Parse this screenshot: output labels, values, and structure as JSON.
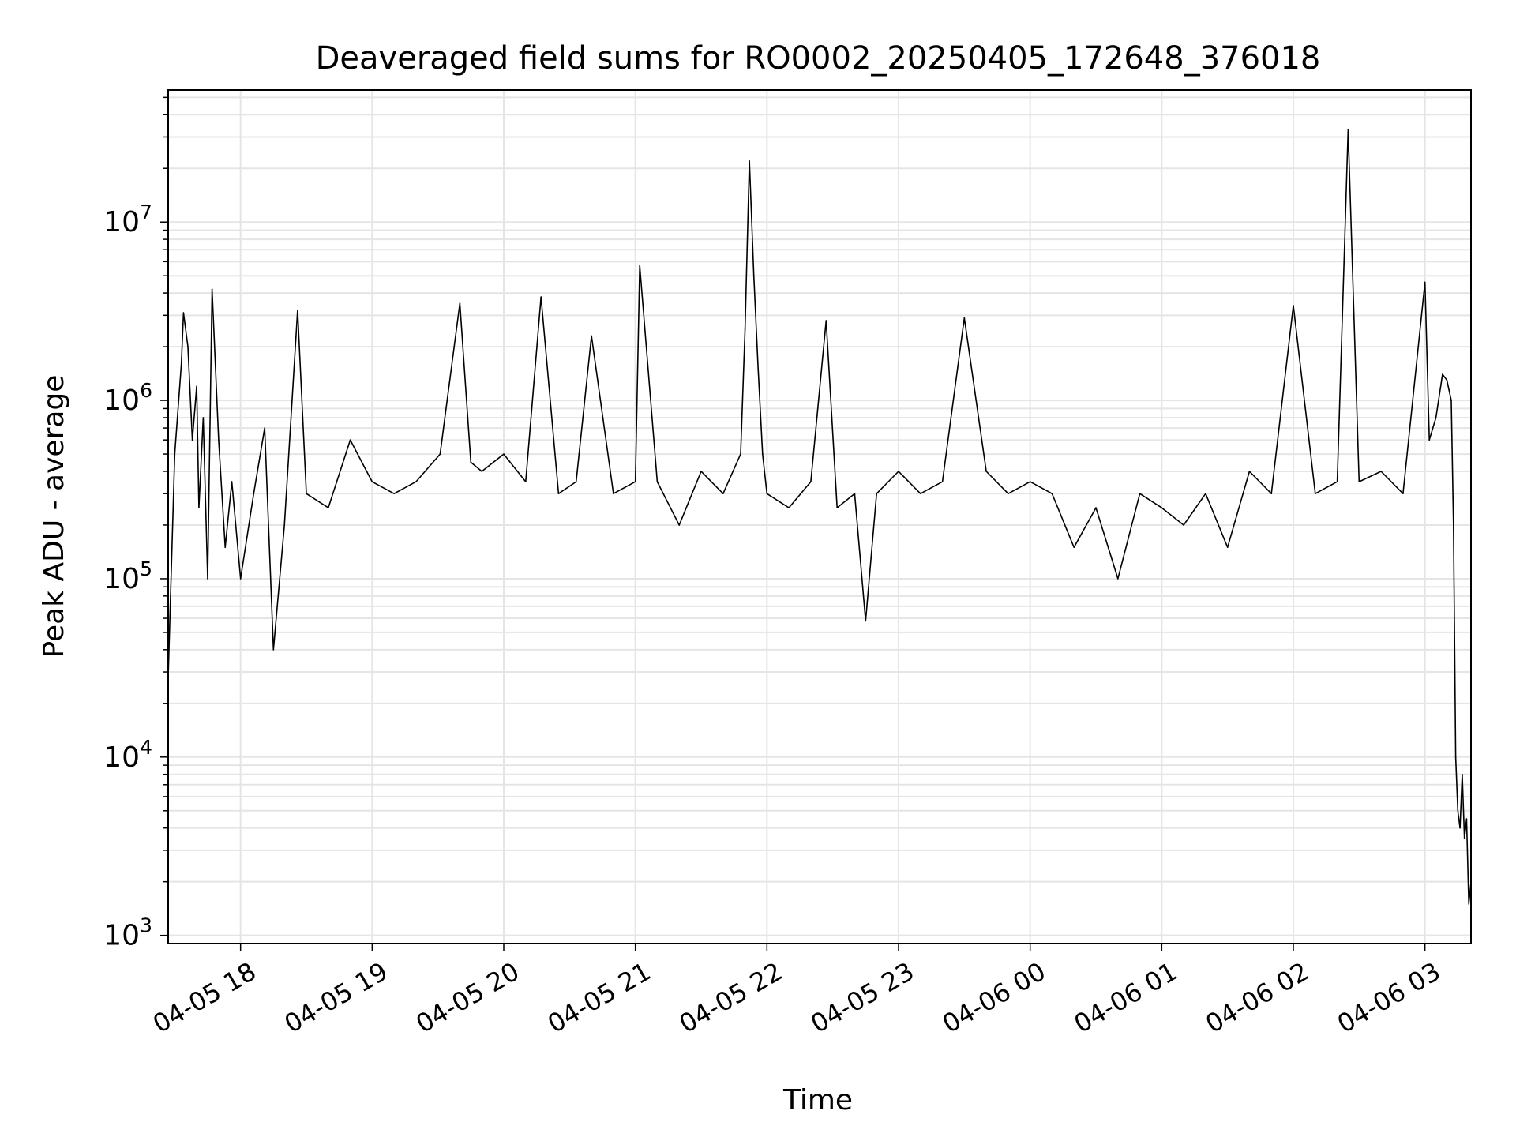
{
  "chart_data": {
    "type": "line",
    "title": "Deaveraged field sums for RO0002_20250405_172648_376018",
    "xlabel": "Time",
    "ylabel": "Peak ADU - average",
    "yscale": "log",
    "ylim": [
      900,
      55000000
    ],
    "xlim": [
      "2025-04-05 17:27",
      "2025-04-06 03:21"
    ],
    "grid": true,
    "line_color": "#000000",
    "grid_color": "#e5e5e5",
    "x_ticks": [
      {
        "time": "2025-04-05 18:00",
        "label": "04-05 18"
      },
      {
        "time": "2025-04-05 19:00",
        "label": "04-05 19"
      },
      {
        "time": "2025-04-05 20:00",
        "label": "04-05 20"
      },
      {
        "time": "2025-04-05 21:00",
        "label": "04-05 21"
      },
      {
        "time": "2025-04-05 22:00",
        "label": "04-05 22"
      },
      {
        "time": "2025-04-05 23:00",
        "label": "04-05 23"
      },
      {
        "time": "2025-04-06 00:00",
        "label": "04-06 00"
      },
      {
        "time": "2025-04-06 01:00",
        "label": "04-06 01"
      },
      {
        "time": "2025-04-06 02:00",
        "label": "04-06 02"
      },
      {
        "time": "2025-04-06 03:00",
        "label": "04-06 03"
      }
    ],
    "y_ticks": [
      {
        "value": 1000,
        "mantissa": "10",
        "exponent": "3"
      },
      {
        "value": 10000,
        "mantissa": "10",
        "exponent": "4"
      },
      {
        "value": 100000,
        "mantissa": "10",
        "exponent": "5"
      },
      {
        "value": 1000000,
        "mantissa": "10",
        "exponent": "6"
      },
      {
        "value": 10000000,
        "mantissa": "10",
        "exponent": "7"
      }
    ],
    "series": [
      {
        "x": [
          "2025-04-05 17:27",
          "2025-04-05 17:28",
          "2025-04-05 17:30",
          "2025-04-05 17:33",
          "2025-04-05 17:34",
          "2025-04-05 17:36",
          "2025-04-05 17:38",
          "2025-04-05 17:40",
          "2025-04-05 17:41",
          "2025-04-05 17:43",
          "2025-04-05 17:45",
          "2025-04-05 17:47",
          "2025-04-05 17:50",
          "2025-04-05 17:53",
          "2025-04-05 17:56",
          "2025-04-05 18:00",
          "2025-04-05 18:06",
          "2025-04-05 18:11",
          "2025-04-05 18:15",
          "2025-04-05 18:20",
          "2025-04-05 18:26",
          "2025-04-05 18:30",
          "2025-04-05 18:40",
          "2025-04-05 18:50",
          "2025-04-05 19:00",
          "2025-04-05 19:10",
          "2025-04-05 19:20",
          "2025-04-05 19:31",
          "2025-04-05 19:40",
          "2025-04-05 19:45",
          "2025-04-05 19:50",
          "2025-04-05 20:00",
          "2025-04-05 20:10",
          "2025-04-05 20:17",
          "2025-04-05 20:25",
          "2025-04-05 20:33",
          "2025-04-05 20:40",
          "2025-04-05 20:50",
          "2025-04-05 21:00",
          "2025-04-05 21:02",
          "2025-04-05 21:10",
          "2025-04-05 21:20",
          "2025-04-05 21:30",
          "2025-04-05 21:40",
          "2025-04-05 21:48",
          "2025-04-05 21:50",
          "2025-04-05 21:52",
          "2025-04-05 21:54",
          "2025-04-05 21:56",
          "2025-04-05 21:58",
          "2025-04-05 22:00",
          "2025-04-05 22:10",
          "2025-04-05 22:20",
          "2025-04-05 22:27",
          "2025-04-05 22:32",
          "2025-04-05 22:40",
          "2025-04-05 22:45",
          "2025-04-05 22:50",
          "2025-04-05 23:00",
          "2025-04-05 23:10",
          "2025-04-05 23:20",
          "2025-04-05 23:30",
          "2025-04-05 23:40",
          "2025-04-05 23:50",
          "2025-04-06 00:00",
          "2025-04-06 00:10",
          "2025-04-06 00:20",
          "2025-04-06 00:30",
          "2025-04-06 00:40",
          "2025-04-06 00:50",
          "2025-04-06 01:00",
          "2025-04-06 01:10",
          "2025-04-06 01:20",
          "2025-04-06 01:30",
          "2025-04-06 01:40",
          "2025-04-06 01:50",
          "2025-04-06 02:00",
          "2025-04-06 02:10",
          "2025-04-06 02:20",
          "2025-04-06 02:25",
          "2025-04-06 02:30",
          "2025-04-06 02:40",
          "2025-04-06 02:50",
          "2025-04-06 03:00",
          "2025-04-06 03:02",
          "2025-04-06 03:05",
          "2025-04-06 03:08",
          "2025-04-06 03:10",
          "2025-04-06 03:12",
          "2025-04-06 03:13",
          "2025-04-06 03:14",
          "2025-04-06 03:15",
          "2025-04-06 03:16",
          "2025-04-06 03:17",
          "2025-04-06 03:18",
          "2025-04-06 03:19",
          "2025-04-06 03:20",
          "2025-04-06 03:21"
        ],
        "y": [
          28000,
          75000,
          500000,
          1600000,
          3100000,
          2000000,
          600000,
          1200000,
          250000,
          800000,
          100000,
          4200000,
          600000,
          150000,
          350000,
          100000,
          300000,
          700000,
          40000,
          200000,
          3200000,
          300000,
          250000,
          600000,
          350000,
          300000,
          350000,
          500000,
          3500000,
          450000,
          400000,
          500000,
          350000,
          3800000,
          300000,
          350000,
          2300000,
          300000,
          350000,
          5700000,
          350000,
          200000,
          400000,
          300000,
          500000,
          2500000,
          22000000,
          5000000,
          1500000,
          500000,
          300000,
          250000,
          350000,
          2800000,
          250000,
          300000,
          58000,
          300000,
          400000,
          300000,
          350000,
          2900000,
          400000,
          300000,
          350000,
          300000,
          150000,
          250000,
          100000,
          300000,
          250000,
          200000,
          300000,
          150000,
          400000,
          300000,
          3400000,
          300000,
          350000,
          33000000,
          350000,
          400000,
          300000,
          4600000,
          600000,
          800000,
          1400000,
          1300000,
          1000000,
          200000,
          10000,
          5000,
          4000,
          8000,
          3500,
          4500,
          1500,
          2000
        ]
      }
    ]
  }
}
